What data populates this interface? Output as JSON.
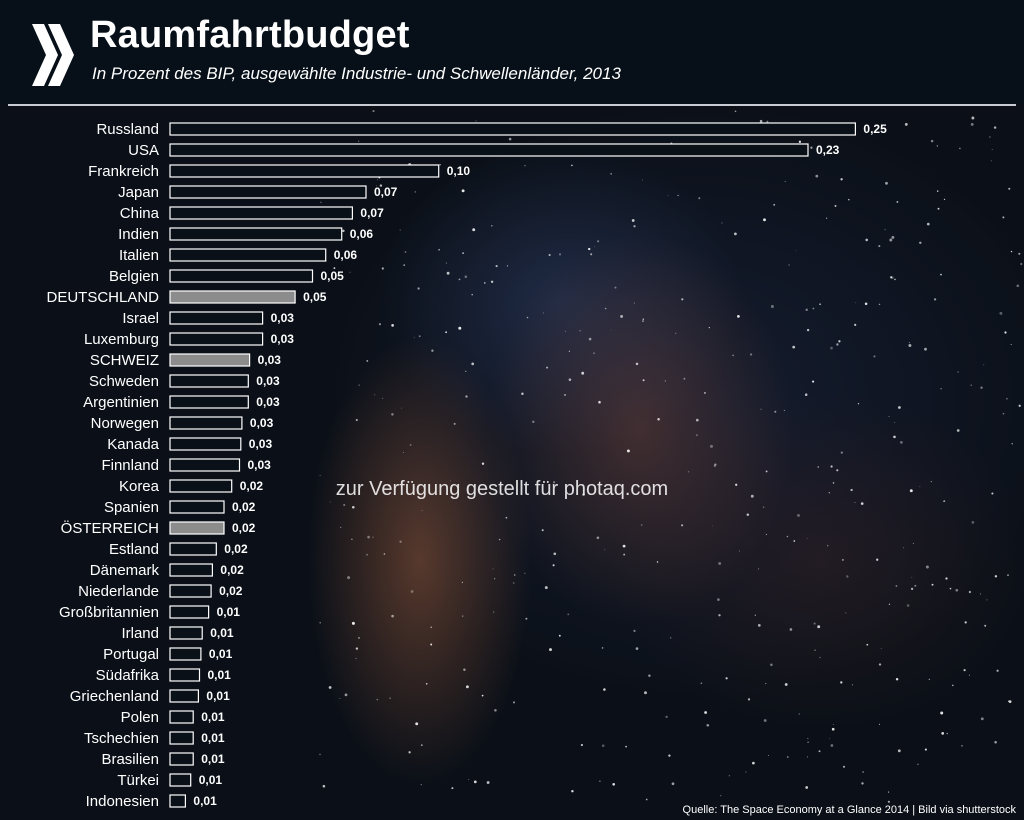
{
  "header": {
    "title": "Raumfahrtbudget",
    "subtitle": "In Prozent des BIP, ausgewählte Industrie-  und Schwellenländer, 2013"
  },
  "footer": {
    "source": "Quelle: The Space Economy at a Glance 2014 | Bild via shutterstock",
    "watermark": "zur Verfügung gestellt für photaq.com"
  },
  "colors": {
    "bar_fill": "#0a1018",
    "bar_outline": "#ffffff",
    "highlight_fill": "#8c8c8c",
    "text": "#ffffff"
  },
  "chart_data": {
    "type": "bar",
    "orientation": "horizontal",
    "title": "Raumfahrtbudget",
    "subtitle": "In Prozent des BIP, ausgewählte Industrie-  und Schwellenländer, 2013",
    "xlim": [
      0,
      0.25
    ],
    "grid": false,
    "categories": [
      "Russland",
      "USA",
      "Frankreich",
      "Japan",
      "China",
      "Indien",
      "Italien",
      "Belgien",
      "DEUTSCHLAND",
      "Israel",
      "Luxemburg",
      "SCHWEIZ",
      "Schweden",
      "Argentinien",
      "Norwegen",
      "Kanada",
      "Finnland",
      "Korea",
      "Spanien",
      "ÖSTERREICH",
      "Estland",
      "Dänemark",
      "Niederlande",
      "Großbritannien",
      "Irland",
      "Portugal",
      "Südafrika",
      "Griechenland",
      "Polen",
      "Tschechien",
      "Brasilien",
      "Türkei",
      "Indonesien"
    ],
    "values": [
      0.25,
      0.23,
      0.1,
      0.07,
      0.07,
      0.06,
      0.06,
      0.05,
      0.05,
      0.03,
      0.03,
      0.03,
      0.03,
      0.03,
      0.03,
      0.03,
      0.03,
      0.02,
      0.02,
      0.02,
      0.02,
      0.02,
      0.02,
      0.01,
      0.01,
      0.01,
      0.01,
      0.01,
      0.01,
      0.01,
      0.01,
      0.01,
      0.01
    ],
    "value_labels": [
      "0,25",
      "0,23",
      "0,10",
      "0,07",
      "0,07",
      "0,06",
      "0,06",
      "0,05",
      "0,05",
      "0,03",
      "0,03",
      "0,03",
      "0,03",
      "0,03",
      "0,03",
      "0,03",
      "0,03",
      "0,02",
      "0,02",
      "0,02",
      "0,02",
      "0,02",
      "0,02",
      "0,01",
      "0,01",
      "0,01",
      "0,01",
      "0,01",
      "0,01",
      "0,01",
      "0,01",
      "0,01",
      "0,01"
    ],
    "precise_values": [
      0.2487,
      0.2315,
      0.0975,
      0.0711,
      0.0662,
      0.0623,
      0.0565,
      0.0517,
      0.0454,
      0.0336,
      0.0336,
      0.0289,
      0.0284,
      0.0284,
      0.0261,
      0.0257,
      0.0252,
      0.0224,
      0.0196,
      0.0196,
      0.0168,
      0.0154,
      0.0149,
      0.014,
      0.0117,
      0.0112,
      0.0107,
      0.0103,
      0.0084,
      0.0084,
      0.0084,
      0.0075,
      0.0056
    ],
    "highlighted": [
      "DEUTSCHLAND",
      "SCHWEIZ",
      "ÖSTERREICH"
    ]
  }
}
